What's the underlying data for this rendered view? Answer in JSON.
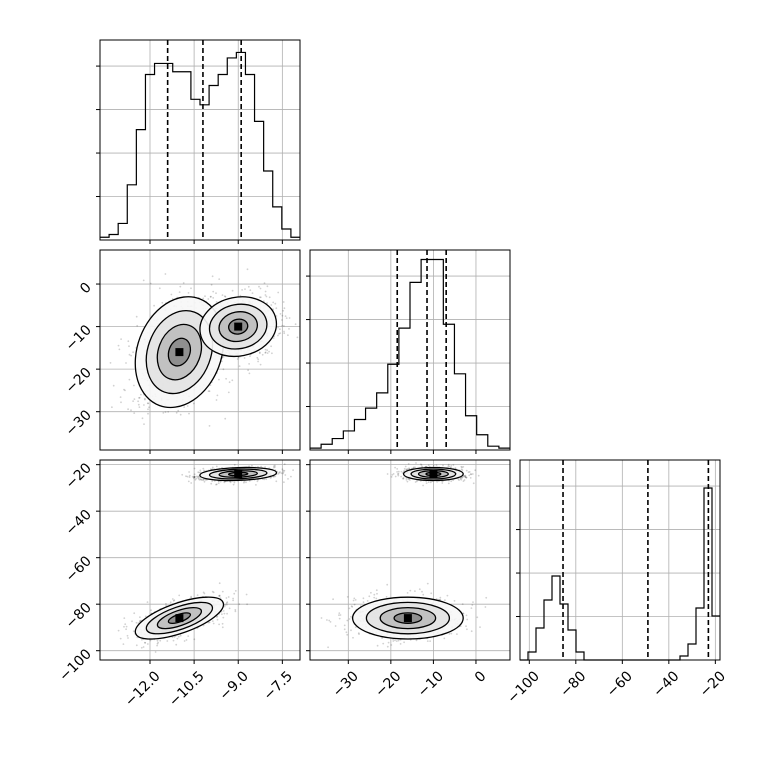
{
  "chart_data": {
    "type": "corner",
    "grid": true,
    "colors": {
      "line": "#000000",
      "grid": "#b0b0b0",
      "background": "#ffffff"
    },
    "params": [
      {
        "range": [
          -13.7,
          -6.9
        ],
        "ticks": [
          -12.0,
          -10.5,
          -9.0,
          -7.5
        ],
        "tick_labels": [
          "−12.0",
          "−10.5",
          "−9.0",
          "−7.5"
        ],
        "quantiles": [
          -11.4,
          -10.2,
          -8.9
        ]
      },
      {
        "range": [
          -39,
          8
        ],
        "ticks": [
          -30,
          -20,
          -10,
          0
        ],
        "tick_labels": [
          "−30",
          "−20",
          "−10",
          "0"
        ],
        "quantiles": [
          -18.5,
          -11.5,
          -7.0
        ]
      },
      {
        "range": [
          -104,
          -18
        ],
        "ticks": [
          -100,
          -80,
          -60,
          -40,
          -20
        ],
        "tick_labels": [
          "−100",
          "−80",
          "−60",
          "−40",
          "−20"
        ],
        "quantiles": [
          -85.5,
          -49.0,
          -23.0
        ]
      }
    ],
    "histograms": [
      {
        "edges_range": [
          -13.7,
          -6.9
        ],
        "counts": [
          0.02,
          0.04,
          0.12,
          0.4,
          0.8,
          1.2,
          1.28,
          1.28,
          1.22,
          1.22,
          1.02,
          0.98,
          1.12,
          1.2,
          1.32,
          1.36,
          1.2,
          0.86,
          0.5,
          0.24,
          0.08,
          0.02
        ],
        "ymax": 1.45
      },
      {
        "edges_range": [
          -39,
          8
        ],
        "counts": [
          0.01,
          0.03,
          0.06,
          0.1,
          0.16,
          0.22,
          0.3,
          0.45,
          0.64,
          0.88,
          1.0,
          1.0,
          0.66,
          0.4,
          0.18,
          0.08,
          0.02,
          0.01
        ],
        "ymax": 1.05
      },
      {
        "edges_range": [
          -104,
          -18
        ],
        "counts": [
          0.0,
          0.04,
          0.16,
          0.3,
          0.42,
          0.28,
          0.15,
          0.04,
          0.0,
          0.0,
          0.0,
          0.0,
          0.0,
          0.0,
          0.0,
          0.0,
          0.0,
          0.0,
          0.0,
          0.0,
          0.02,
          0.08,
          0.26,
          0.86,
          0.22
        ],
        "ymax": 1.0
      }
    ],
    "clusters": [
      {
        "weight": 0.45,
        "mean": [
          -11.0,
          -16.0,
          -86.0
        ],
        "std": [
          0.75,
          6.5,
          4.5
        ],
        "corr": [
          [
            1,
            0.2,
            0.65
          ],
          [
            0.2,
            1,
            0.0
          ],
          [
            0.65,
            0.0,
            1
          ]
        ]
      },
      {
        "weight": 0.55,
        "mean": [
          -9.0,
          -10.0,
          -24.0
        ],
        "std": [
          0.65,
          3.5,
          1.4
        ],
        "corr": [
          [
            1,
            0.1,
            0.2
          ],
          [
            0.1,
            1,
            0.0
          ],
          [
            0.2,
            0.0,
            1
          ]
        ]
      }
    ],
    "contour_levels": [
      0.12,
      0.35,
      0.6,
      0.85
    ]
  }
}
